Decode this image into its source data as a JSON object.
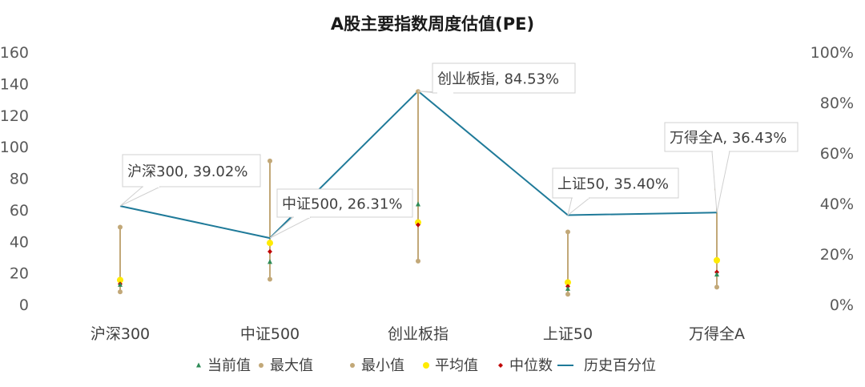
{
  "chart_data": {
    "type": "line",
    "title": "A股主要指数周度估值(PE)",
    "categories": [
      "沪深300",
      "中证500",
      "创业板指",
      "上证50",
      "万得全A"
    ],
    "y_left": {
      "min": 0,
      "max": 160,
      "step": 20,
      "ticks": [
        "0",
        "20",
        "40",
        "60",
        "80",
        "100",
        "120",
        "140",
        "160"
      ]
    },
    "y_right": {
      "min": 0,
      "max": 1,
      "step": 0.2,
      "ticks": [
        "0%",
        "20%",
        "40%",
        "60%",
        "80%",
        "100%"
      ]
    },
    "series": [
      {
        "name": "当前值",
        "axis": "left",
        "color": "#2e8b57",
        "marker": "triangle",
        "values": [
          12.5,
          27.0,
          63.5,
          10.0,
          19.0
        ]
      },
      {
        "name": "最大值",
        "axis": "left",
        "color": "#c2a878",
        "marker": "circle",
        "values": [
          49.0,
          91.0,
          135.0,
          46.0,
          73.0
        ]
      },
      {
        "name": "最小值",
        "axis": "left",
        "color": "#c2a878",
        "marker": "circle",
        "values": [
          8.0,
          16.0,
          27.5,
          6.5,
          11.0
        ]
      },
      {
        "name": "平均值",
        "axis": "left",
        "color": "#ffeb00",
        "marker": "circle",
        "values": [
          15.5,
          39.0,
          52.0,
          14.0,
          28.0
        ]
      },
      {
        "name": "中位数",
        "axis": "left",
        "color": "#c00000",
        "marker": "diamond",
        "values": [
          13.0,
          33.5,
          50.5,
          11.5,
          20.5
        ]
      },
      {
        "name": "历史百分位",
        "axis": "right",
        "color": "#1f7a99",
        "marker": "none",
        "values": [
          0.3902,
          0.2631,
          0.8453,
          0.354,
          0.3643
        ]
      }
    ],
    "callouts": [
      "沪深300, 39.02%",
      "中证500, 26.31%",
      "创业板指, 84.53%",
      "上证50, 35.40%",
      "万得全A, 36.43%"
    ],
    "grid": false,
    "legend_position": "bottom"
  }
}
